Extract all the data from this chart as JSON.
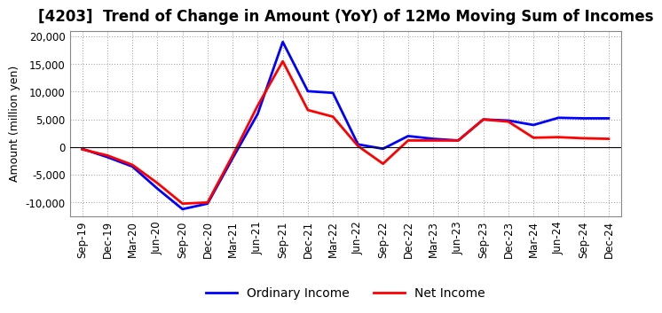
{
  "title": "[4203]  Trend of Change in Amount (YoY) of 12Mo Moving Sum of Incomes",
  "ylabel": "Amount (million yen)",
  "labels": [
    "Sep-19",
    "Dec-19",
    "Mar-20",
    "Jun-20",
    "Sep-20",
    "Dec-20",
    "Mar-21",
    "Jun-21",
    "Sep-21",
    "Dec-21",
    "Mar-22",
    "Jun-22",
    "Sep-22",
    "Dec-22",
    "Mar-23",
    "Jun-23",
    "Sep-23",
    "Dec-23",
    "Mar-24",
    "Jun-24",
    "Sep-24",
    "Dec-24"
  ],
  "ordinary_income": [
    -300,
    -1800,
    -3500,
    -7500,
    -11200,
    -10200,
    -2000,
    6000,
    19000,
    10100,
    9800,
    500,
    -300,
    2000,
    1500,
    1200,
    5000,
    4800,
    4000,
    5300,
    5200,
    5200
  ],
  "net_income": [
    -400,
    -1500,
    -3200,
    -6500,
    -10200,
    -10000,
    -1500,
    7500,
    15500,
    6700,
    5500,
    200,
    -3000,
    1200,
    1200,
    1200,
    5000,
    4600,
    1700,
    1800,
    1600,
    1500
  ],
  "ordinary_color": "#0000FF",
  "net_color": "#FF0000",
  "ylim": [
    -12500,
    21000
  ],
  "yticks": [
    -10000,
    -5000,
    0,
    5000,
    10000,
    15000,
    20000
  ],
  "background_color": "#FFFFFF",
  "grid_color": "#999999",
  "title_fontsize": 12,
  "axis_label_fontsize": 9,
  "tick_fontsize": 8.5,
  "legend_fontsize": 10,
  "line_width": 2.0
}
